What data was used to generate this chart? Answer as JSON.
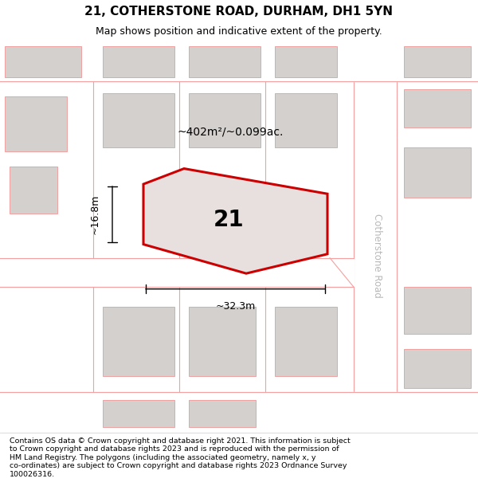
{
  "title": "21, COTHERSTONE ROAD, DURHAM, DH1 5YN",
  "subtitle": "Map shows position and indicative extent of the property.",
  "footer_text": "Contains OS data © Crown copyright and database right 2021. This information is subject\nto Crown copyright and database rights 2023 and is reproduced with the permission of\nHM Land Registry. The polygons (including the associated geometry, namely x, y\nco-ordinates) are subject to Crown copyright and database rights 2023 Ordnance Survey\n100026316.",
  "map_bg": "#eeecea",
  "building_fill": "#d4d0ce",
  "building_edge": "#f0a0a0",
  "road_color": "#f5a0a0",
  "road_white": "#ffffff",
  "subject_fill": "#e8e0df",
  "subject_edge": "#cc0000",
  "road_label": "Cotherstone Road",
  "area_label": "~402m²/~0.099ac.",
  "width_label": "~32.3m",
  "height_label": "~16.8m",
  "number_label": "21",
  "title_fontsize": 11,
  "subtitle_fontsize": 9,
  "footer_fontsize": 6.8,
  "area_fontsize": 10,
  "number_fontsize": 20,
  "dim_fontsize": 9,
  "road_label_fontsize": 8.5
}
